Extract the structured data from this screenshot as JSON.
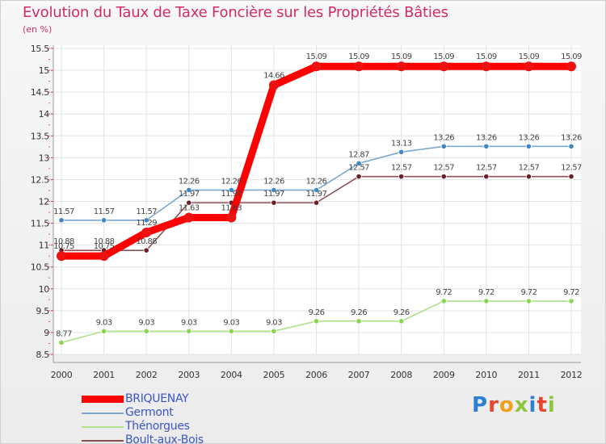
{
  "title": "Evolution du Taux de Taxe Foncière sur les Propriétés Bâties",
  "unit": "(en %)",
  "logo": {
    "text": "Proxiti",
    "colors": [
      "#2f7fd2",
      "#e8452c",
      "#f0a11c",
      "#8cc63f",
      "#2f7fd2",
      "#e8452c",
      "#8cc63f"
    ]
  },
  "chart_data": {
    "type": "line",
    "title": "Evolution du Taux de Taxe Foncière sur les Propriétés Bâties",
    "ylabel": "(en %)",
    "xlabel": "",
    "x": [
      "2000",
      "2001",
      "2002",
      "2003",
      "2004",
      "2005",
      "2006",
      "2007",
      "2008",
      "2009",
      "2010",
      "2011",
      "2012"
    ],
    "ylim": [
      8.5,
      15.5
    ],
    "yticks": [
      8.5,
      9,
      9.5,
      10,
      10.5,
      11,
      11.5,
      12,
      12.5,
      13,
      13.5,
      14,
      14.5,
      15,
      15.5
    ],
    "ytick_labels": [
      "8.5",
      "9",
      "9.5",
      "10",
      "10.5",
      "11",
      "11.5",
      "12",
      "12.5",
      "13",
      "13.5",
      "14",
      "14.5",
      "15",
      "15.5"
    ],
    "grid": true,
    "legend_position": "bottom-left",
    "series": [
      {
        "name": "Germont",
        "color": "#7aa8d0",
        "marker_color": "#3f87c5",
        "values": [
          11.57,
          11.57,
          11.57,
          12.26,
          12.26,
          12.26,
          12.26,
          12.87,
          13.13,
          13.26,
          13.26,
          13.26,
          13.26
        ],
        "labels": [
          "11.57",
          "11.57",
          "11.57",
          "12.26",
          "12.26",
          "12.26",
          "12.26",
          "12.87",
          "13.13",
          "13.26",
          "13.26",
          "13.26",
          "13.26"
        ]
      },
      {
        "name": "Thénorgues",
        "color": "#b0e08a",
        "marker_color": "#8ad64f",
        "values": [
          8.77,
          9.03,
          9.03,
          9.03,
          9.03,
          9.03,
          9.26,
          9.26,
          9.26,
          9.72,
          9.72,
          9.72,
          9.72
        ],
        "labels": [
          "8.77",
          "9.03",
          "9.03",
          "9.03",
          "9.03",
          "9.03",
          "9.26",
          "9.26",
          "9.26",
          "9.72",
          "9.72",
          "9.72",
          "9.72"
        ]
      },
      {
        "name": "Boult-aux-Bois",
        "color": "#8c4f55",
        "marker_color": "#6b1f26",
        "values": [
          10.88,
          10.88,
          10.88,
          11.97,
          11.97,
          11.97,
          11.97,
          12.57,
          12.57,
          12.57,
          12.57,
          12.57,
          12.57
        ],
        "labels": [
          "10.88",
          "10.88",
          "10.88",
          "11.97",
          "11.97",
          "11.97",
          "11.97",
          "12.57",
          "12.57",
          "12.57",
          "12.57",
          "12.57",
          "12.57"
        ]
      },
      {
        "name": "BRIQUENAY",
        "color": "#ff0000",
        "marker_color": "#ee1111",
        "values": [
          10.75,
          10.75,
          11.29,
          11.63,
          11.63,
          14.66,
          15.09,
          15.09,
          15.09,
          15.09,
          15.09,
          15.09,
          15.09
        ],
        "labels": [
          "10.75",
          "10.75",
          "11.29",
          "11.63",
          "11.63",
          "14.66",
          "15.09",
          "15.09",
          "15.09",
          "15.09",
          "15.09",
          "15.09",
          "15.09"
        ]
      }
    ],
    "legend_order": [
      "BRIQUENAY",
      "Germont",
      "Thénorgues",
      "Boult-aux-Bois"
    ]
  }
}
